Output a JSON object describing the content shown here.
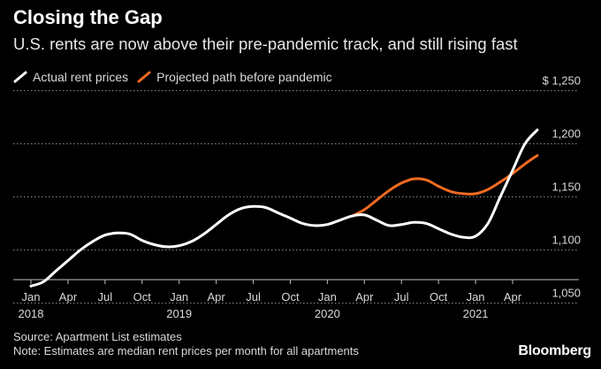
{
  "header": {
    "title": "Closing the Gap",
    "subtitle": "U.S. rents are now above their pre-pandemic track, and still rising fast"
  },
  "footer": {
    "source": "Source: Apartment List estimates",
    "note": "Note: Estimates are median rent prices per month for all apartments",
    "brand": "Bloomberg"
  },
  "chart_data": {
    "type": "line",
    "title": "Closing the Gap",
    "subtitle": "U.S. rents are now above their pre-pandemic track, and still rising fast",
    "xlabel": "",
    "ylabel": "",
    "x_ticks": [
      {
        "month": "2018-01",
        "label": "Jan",
        "year": "2018"
      },
      {
        "month": "2018-04",
        "label": "Apr",
        "year": ""
      },
      {
        "month": "2018-07",
        "label": "Jul",
        "year": ""
      },
      {
        "month": "2018-10",
        "label": "Oct",
        "year": ""
      },
      {
        "month": "2019-01",
        "label": "Jan",
        "year": "2019"
      },
      {
        "month": "2019-04",
        "label": "Apr",
        "year": ""
      },
      {
        "month": "2019-07",
        "label": "Jul",
        "year": ""
      },
      {
        "month": "2019-10",
        "label": "Oct",
        "year": ""
      },
      {
        "month": "2020-01",
        "label": "Jan",
        "year": "2020"
      },
      {
        "month": "2020-04",
        "label": "Apr",
        "year": ""
      },
      {
        "month": "2020-07",
        "label": "Jul",
        "year": ""
      },
      {
        "month": "2020-10",
        "label": "Oct",
        "year": ""
      },
      {
        "month": "2021-01",
        "label": "Jan",
        "year": "2021"
      },
      {
        "month": "2021-04",
        "label": "Apr",
        "year": ""
      }
    ],
    "y_ticks": [
      {
        "value": 1050,
        "label": "1,050"
      },
      {
        "value": 1100,
        "label": "1,100"
      },
      {
        "value": 1150,
        "label": "1,150"
      },
      {
        "value": 1200,
        "label": "1,200"
      },
      {
        "value": 1250,
        "label": "$ 1,250"
      }
    ],
    "ylim": [
      1035,
      1265
    ],
    "xlim": [
      "2017-12",
      "2021-08"
    ],
    "grid": "horizontal dotted",
    "legend_position": "top-left",
    "series": [
      {
        "name": "Actual rent prices",
        "color": "#ffffff",
        "points": [
          [
            "2018-01",
            1066
          ],
          [
            "2018-02",
            1070
          ],
          [
            "2018-03",
            1080
          ],
          [
            "2018-04",
            1090
          ],
          [
            "2018-05",
            1100
          ],
          [
            "2018-06",
            1108
          ],
          [
            "2018-07",
            1114
          ],
          [
            "2018-08",
            1116
          ],
          [
            "2018-09",
            1115
          ],
          [
            "2018-10",
            1109
          ],
          [
            "2018-11",
            1105
          ],
          [
            "2018-12",
            1103
          ],
          [
            "2019-01",
            1104
          ],
          [
            "2019-02",
            1108
          ],
          [
            "2019-03",
            1115
          ],
          [
            "2019-04",
            1124
          ],
          [
            "2019-05",
            1133
          ],
          [
            "2019-06",
            1139
          ],
          [
            "2019-07",
            1141
          ],
          [
            "2019-08",
            1140
          ],
          [
            "2019-09",
            1135
          ],
          [
            "2019-10",
            1130
          ],
          [
            "2019-11",
            1125
          ],
          [
            "2019-12",
            1123
          ],
          [
            "2020-01",
            1124
          ],
          [
            "2020-02",
            1128
          ],
          [
            "2020-03",
            1132
          ],
          [
            "2020-04",
            1133
          ],
          [
            "2020-05",
            1128
          ],
          [
            "2020-06",
            1123
          ],
          [
            "2020-07",
            1124
          ],
          [
            "2020-08",
            1126
          ],
          [
            "2020-09",
            1125
          ],
          [
            "2020-10",
            1120
          ],
          [
            "2020-11",
            1115
          ],
          [
            "2020-12",
            1112
          ],
          [
            "2021-01",
            1113
          ],
          [
            "2021-02",
            1125
          ],
          [
            "2021-03",
            1150
          ],
          [
            "2021-04",
            1175
          ],
          [
            "2021-05",
            1200
          ],
          [
            "2021-06",
            1213
          ]
        ]
      },
      {
        "name": "Projected path before pandemic",
        "color": "#f26b21",
        "points": [
          [
            "2020-03",
            1132
          ],
          [
            "2020-04",
            1138
          ],
          [
            "2020-05",
            1147
          ],
          [
            "2020-06",
            1156
          ],
          [
            "2020-07",
            1163
          ],
          [
            "2020-08",
            1167
          ],
          [
            "2020-09",
            1166
          ],
          [
            "2020-10",
            1160
          ],
          [
            "2020-11",
            1155
          ],
          [
            "2020-12",
            1153
          ],
          [
            "2021-01",
            1153
          ],
          [
            "2021-02",
            1157
          ],
          [
            "2021-03",
            1164
          ],
          [
            "2021-04",
            1172
          ],
          [
            "2021-05",
            1181
          ],
          [
            "2021-06",
            1189
          ]
        ]
      }
    ]
  }
}
